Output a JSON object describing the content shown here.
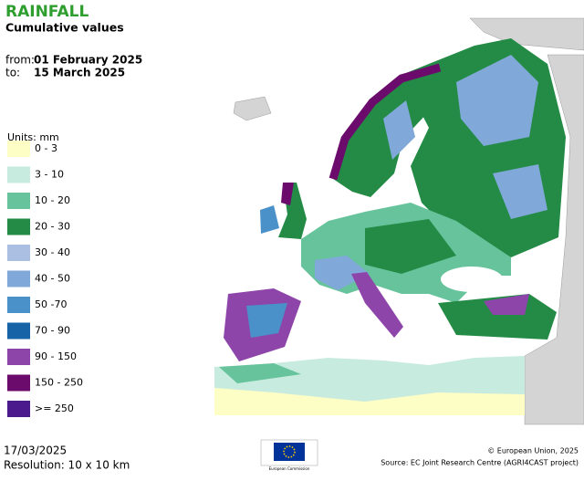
{
  "header": {
    "title": "RAINFALL",
    "subtitle": "Cumulative values",
    "from_label": "from:",
    "from_date": "01 February 2025",
    "to_label": "to:",
    "to_date": "15 March 2025"
  },
  "legend": {
    "units": "Units: mm",
    "items": [
      {
        "label": "0 - 3",
        "color": "#fdfdc6"
      },
      {
        "label": "3 - 10",
        "color": "#c8ebdf"
      },
      {
        "label": "10 - 20",
        "color": "#66c39b"
      },
      {
        "label": "20 - 30",
        "color": "#238b45"
      },
      {
        "label": "30 - 40",
        "color": "#aabfe2"
      },
      {
        "label": "40 - 50",
        "color": "#80a9d9"
      },
      {
        "label": "50 -70",
        "color": "#4a91c9"
      },
      {
        "label": "70 - 90",
        "color": "#1763a8"
      },
      {
        "label": "90 - 150",
        "color": "#8e45a9"
      },
      {
        "label": "150 - 250",
        "color": "#6b0b6b"
      },
      {
        "label": ">= 250",
        "color": "#4b1a8c"
      }
    ]
  },
  "footer": {
    "date": "17/03/2025",
    "resolution": "Resolution: 10 x 10 km",
    "logo_text": "European Commission",
    "copyright": "© European Union, 2025",
    "source": "Source: EC Joint Research Centre (AGRI4CAST project)"
  }
}
